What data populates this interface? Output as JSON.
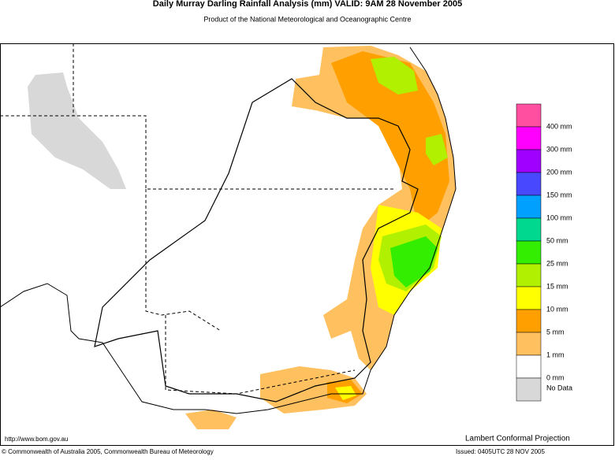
{
  "header": {
    "title": "Daily Murray Darling Rainfall Analysis (mm)  VALID: 9AM 28 November 2005",
    "subtitle": "Product of the National Meteorological and Oceanographic Centre"
  },
  "legend": {
    "colors": [
      "#ff4fa0",
      "#ff00ff",
      "#a000ff",
      "#4848ff",
      "#00a0ff",
      "#00d890",
      "#33ee00",
      "#b0f000",
      "#ffff00",
      "#ffa000",
      "#ffc060",
      "#ffffff",
      "#d8d8d8"
    ],
    "labels": [
      "400 mm",
      "300 mm",
      "200 mm",
      "150 mm",
      "100 mm",
      "50 mm",
      "25 mm",
      "15 mm",
      "10 mm",
      "5 mm",
      "1 mm",
      "0 mm"
    ],
    "no_data": "No Data"
  },
  "footer": {
    "url": "http://www.bom.gov.au",
    "projection": "Lambert Conformal Projection",
    "copyright": "© Commonwealth of Australia 2005, Commonwealth Bureau of Meteorology",
    "issued": "Issued: 0405UTC 28 NOV 2005"
  }
}
